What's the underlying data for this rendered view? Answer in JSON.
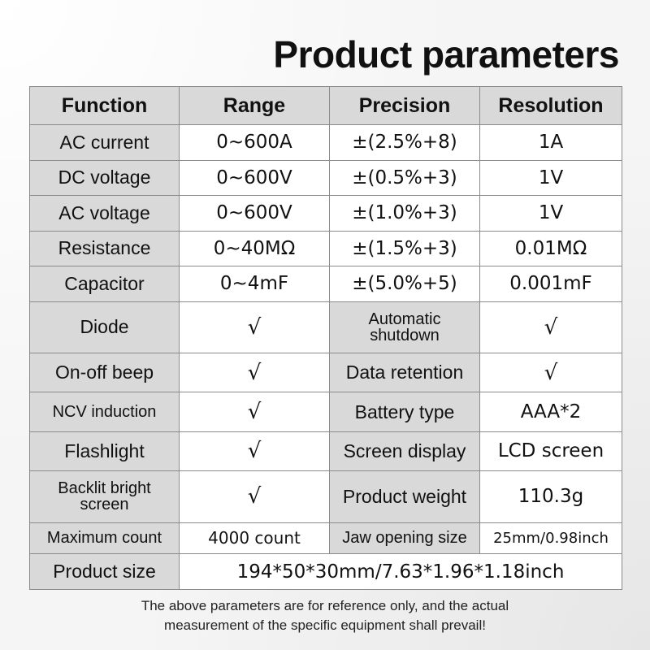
{
  "page": {
    "title": "Product parameters"
  },
  "table": {
    "headers": [
      "Function",
      "Range",
      "Precision",
      "Resolution"
    ],
    "rows": [
      [
        "AC current",
        "0~600A",
        "±(2.5%+8)",
        "1A"
      ],
      [
        "DC voltage",
        "0~600V",
        "±(0.5%+3)",
        "1V"
      ],
      [
        "AC voltage",
        "0~600V",
        "±(1.0%+3)",
        "1V"
      ],
      [
        "Resistance",
        "0~40MΩ",
        "±(1.5%+3)",
        "0.01MΩ"
      ],
      [
        "Capacitor",
        "0~4mF",
        "±(5.0%+5)",
        "0.001mF"
      ],
      [
        "Diode",
        "√",
        "Automatic shutdown",
        "√"
      ],
      [
        "On-off beep",
        "√",
        "Data retention",
        "√"
      ],
      [
        "NCV induction",
        "√",
        "Battery type",
        "AAA*2"
      ],
      [
        "Flashlight",
        "√",
        "Screen display",
        "LCD screen"
      ],
      [
        "Backlit bright screen",
        "√",
        "Product weight",
        "110.3g"
      ],
      [
        "Maximum count",
        "4000 count",
        "Jaw opening size",
        "25mm/0.98inch"
      ]
    ],
    "size_row": {
      "label": "Product size",
      "value": "194*50*30mm/7.63*1.96*1.18inch"
    }
  },
  "footer": {
    "line1": "The above parameters are for reference only, and the actual",
    "line2": "measurement of the specific equipment shall prevail!"
  },
  "colors": {
    "header_bg": "#d9d9d9",
    "label_bg": "#d9d9d9",
    "value_bg": "#ffffff",
    "border": "#8a8a8a"
  }
}
